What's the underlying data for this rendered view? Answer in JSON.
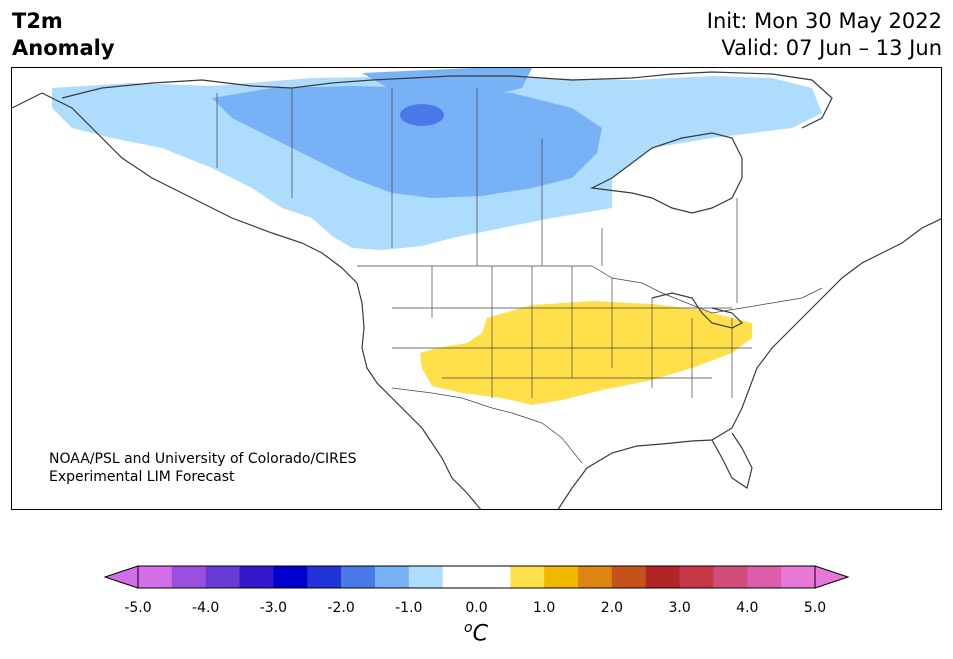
{
  "title": {
    "left_line1": "T2m",
    "left_line2": "Anomaly",
    "init": "Init: Mon 30 May 2022",
    "valid": "Valid: 07 Jun – 13 Jun"
  },
  "credit": {
    "line1": "NOAA/PSL and University of Colorado/CIRES",
    "line2": "Experimental LIM Forecast"
  },
  "colorbar": {
    "colors": [
      "#d46ee8",
      "#9b4fe0",
      "#6a3ad8",
      "#3318cc",
      "#0000cc",
      "#2234d8",
      "#4a78e8",
      "#78b2f6",
      "#addcfd",
      "#ffffff",
      "#ffffff",
      "#ffe04a",
      "#f2b800",
      "#de8410",
      "#c4521a",
      "#b22426",
      "#c63848",
      "#d24c7c",
      "#dc5eaa",
      "#e878d8"
    ],
    "ticks": [
      "-5.0",
      "-4.0",
      "-3.0",
      "-2.0",
      "-1.0",
      "0.0",
      "1.0",
      "2.0",
      "3.0",
      "4.0",
      "5.0"
    ],
    "units_base": "C",
    "units_sup": "o"
  },
  "legend_colors": {
    "light_blue": "#addcfd",
    "mid_blue": "#78b2f6",
    "dark_blue": "#4a78e8",
    "yellow": "#ffe04a"
  }
}
